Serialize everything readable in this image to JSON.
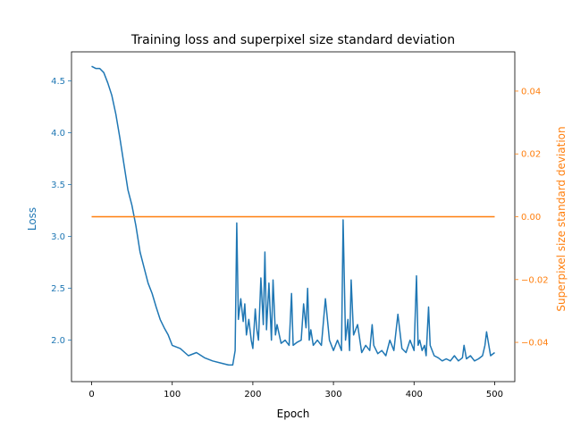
{
  "chart_data": {
    "type": "line",
    "title": "Training loss and superpixel size standard deviation",
    "xlabel": "Epoch",
    "ylabel_left": "Loss",
    "ylabel_right": "Superpixel size standard deviation",
    "xlim": [
      -25,
      525
    ],
    "ylim_left": [
      1.6,
      4.78
    ],
    "ylim_right": [
      -0.0525,
      0.0525
    ],
    "x_ticks": [
      0,
      100,
      200,
      300,
      400,
      500
    ],
    "y_ticks_left": [
      2.0,
      2.5,
      3.0,
      3.5,
      4.0,
      4.5
    ],
    "y_ticks_left_labels": [
      "2.0",
      "2.5",
      "3.0",
      "3.5",
      "4.0",
      "4.5"
    ],
    "y_ticks_right": [
      -0.04,
      -0.02,
      0.0,
      0.02,
      0.04
    ],
    "y_ticks_right_labels": [
      "−0.04",
      "−0.02",
      "0.00",
      "0.02",
      "0.04"
    ],
    "grid": false,
    "colors": {
      "loss": "#1f77b4",
      "std": "#ff7f0e",
      "axis": "#000000"
    },
    "series": [
      {
        "axis": "left",
        "color": "#1f77b4",
        "x": [
          0,
          5,
          10,
          15,
          20,
          25,
          30,
          35,
          40,
          45,
          50,
          55,
          60,
          65,
          70,
          75,
          80,
          85,
          90,
          95,
          100,
          110,
          120,
          130,
          140,
          150,
          160,
          170,
          175,
          178,
          180,
          182,
          185,
          188,
          190,
          192,
          195,
          198,
          200,
          203,
          205,
          207,
          210,
          213,
          215,
          217,
          220,
          223,
          225,
          228,
          230,
          235,
          240,
          245,
          248,
          250,
          255,
          260,
          263,
          266,
          268,
          270,
          272,
          275,
          280,
          285,
          290,
          295,
          300,
          305,
          310,
          312,
          315,
          318,
          320,
          322,
          325,
          330,
          335,
          340,
          345,
          348,
          350,
          355,
          360,
          365,
          370,
          375,
          380,
          385,
          390,
          395,
          400,
          403,
          405,
          407,
          410,
          413,
          415,
          418,
          420,
          425,
          430,
          435,
          440,
          445,
          450,
          455,
          460,
          462,
          465,
          470,
          475,
          480,
          485,
          488,
          490,
          495,
          500
        ],
        "y": [
          4.64,
          4.62,
          4.62,
          4.58,
          4.48,
          4.36,
          4.18,
          3.95,
          3.7,
          3.45,
          3.3,
          3.1,
          2.85,
          2.7,
          2.55,
          2.45,
          2.32,
          2.2,
          2.12,
          2.05,
          1.95,
          1.92,
          1.85,
          1.88,
          1.83,
          1.8,
          1.78,
          1.76,
          1.76,
          1.9,
          3.13,
          2.2,
          2.4,
          2.18,
          2.35,
          2.05,
          2.2,
          2.0,
          1.92,
          2.3,
          2.1,
          2.0,
          2.6,
          2.15,
          2.85,
          2.1,
          2.55,
          2.0,
          2.58,
          2.05,
          2.15,
          1.97,
          2.0,
          1.95,
          2.45,
          1.95,
          1.98,
          2.0,
          2.35,
          2.12,
          2.5,
          2.0,
          2.1,
          1.95,
          2.0,
          1.95,
          2.4,
          2.0,
          1.9,
          2.0,
          1.9,
          3.16,
          2.0,
          2.2,
          1.9,
          2.58,
          2.05,
          2.15,
          1.88,
          1.95,
          1.9,
          2.15,
          1.95,
          1.87,
          1.9,
          1.85,
          2.0,
          1.9,
          2.25,
          1.92,
          1.88,
          2.0,
          1.9,
          2.62,
          1.95,
          2.0,
          1.9,
          1.95,
          1.85,
          2.32,
          1.95,
          1.85,
          1.83,
          1.8,
          1.82,
          1.8,
          1.85,
          1.8,
          1.83,
          1.95,
          1.82,
          1.85,
          1.8,
          1.82,
          1.85,
          1.95,
          2.08,
          1.85,
          1.88
        ]
      },
      {
        "axis": "right",
        "color": "#ff7f0e",
        "x": [
          0,
          500
        ],
        "y": [
          0.0,
          0.0
        ]
      }
    ]
  }
}
